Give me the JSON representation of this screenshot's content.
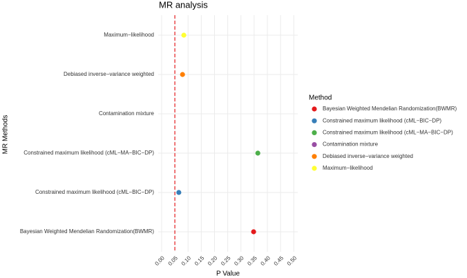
{
  "chart_data": {
    "type": "dot",
    "title": "MR analysis",
    "x_label": "P Value",
    "y_label": "MR Methods",
    "categories": [
      "Bayesian Weighted Mendelian Randomization(BWMR)",
      "Constrained maximum likelihood (cML−BIC−DP)",
      "Constrained maximum likelihood (cML−MA−BIC−DP)",
      "Contamination mixture",
      "Debiased inverse−variance weighted",
      "Maximum−likelihood"
    ],
    "values": [
      0.348,
      0.065,
      0.364,
      null,
      0.079,
      0.084
    ],
    "colors": [
      "#e41a1c",
      "#377eb8",
      "#4daf4a",
      "#984ea3",
      "#ff7f00",
      "#ffff33"
    ],
    "legend_title": "Method",
    "reference_line": {
      "value": 0.05,
      "color": "#e41a1c"
    },
    "xlim": [
      -0.013,
      0.515
    ],
    "xticks": [
      {
        "value": 0,
        "label": "0.00"
      },
      {
        "value": 0.05,
        "label": "0.05"
      },
      {
        "value": 0.1,
        "label": "0.10"
      },
      {
        "value": 0.15,
        "label": "0.15"
      },
      {
        "value": 0.2,
        "label": "0.20"
      },
      {
        "value": 0.25,
        "label": "0.25"
      },
      {
        "value": 0.3,
        "label": "0.30"
      },
      {
        "value": 0.35,
        "label": "0.35"
      },
      {
        "value": 0.4,
        "label": "0.40"
      },
      {
        "value": 0.45,
        "label": "0.45"
      },
      {
        "value": 0.5,
        "label": "0.50"
      }
    ],
    "grid": true
  }
}
